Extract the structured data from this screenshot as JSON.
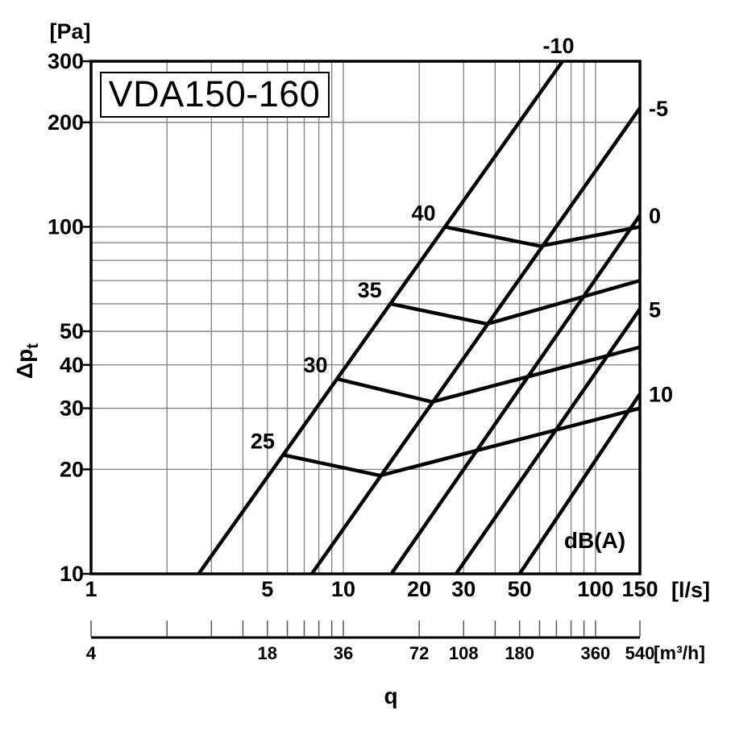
{
  "title": "VDA150-160",
  "chart_data": {
    "type": "line",
    "subtype": "log-log pressure drop vs airflow diagram with damper-position lines and iso-noise curves",
    "xlabel": "q",
    "ylabel": "Δp",
    "ylabel_sub": "t",
    "y_unit": "[Pa]",
    "x_unit": "[l/s]",
    "noise_unit_label": "dB(A)",
    "xlim": [
      1,
      150
    ],
    "ylim": [
      10,
      300
    ],
    "log_x": true,
    "log_y": true,
    "x_ticks": [
      1,
      5,
      10,
      20,
      30,
      50,
      100,
      150
    ],
    "y_ticks": [
      10,
      20,
      30,
      40,
      50,
      100,
      200,
      300
    ],
    "x_gridlines": [
      2,
      3,
      4,
      5,
      6,
      7,
      8,
      9,
      10,
      20,
      30,
      40,
      50,
      60,
      70,
      80,
      90,
      100
    ],
    "y_gridlines": [
      20,
      30,
      40,
      50,
      60,
      70,
      80,
      90,
      100,
      200
    ],
    "x2_axis": {
      "unit": "[m³/h]",
      "tick_positions_ls": [
        1,
        2,
        3,
        4,
        5,
        6,
        7,
        8,
        9,
        10,
        20,
        30,
        40,
        50,
        60,
        70,
        80,
        90,
        100,
        150
      ],
      "labels": [
        {
          "ls": 1,
          "text": "4"
        },
        {
          "ls": 5,
          "text": "18"
        },
        {
          "ls": 10,
          "text": "36"
        },
        {
          "ls": 20,
          "text": "72"
        },
        {
          "ls": 30,
          "text": "108"
        },
        {
          "ls": 50,
          "text": "180"
        },
        {
          "ls": 100,
          "text": "360"
        },
        {
          "ls": 150,
          "text": "540"
        }
      ]
    },
    "damper_lines": [
      {
        "label": "-10",
        "label_pos": "top",
        "points": [
          [
            2.67,
            10
          ],
          [
            74,
            300
          ]
        ]
      },
      {
        "label": "-5",
        "label_pos": "right",
        "points": [
          [
            7.5,
            10
          ],
          [
            150,
            220
          ]
        ]
      },
      {
        "label": "0",
        "label_pos": "right",
        "points": [
          [
            15.5,
            10
          ],
          [
            150,
            108
          ]
        ]
      },
      {
        "label": "5",
        "label_pos": "right",
        "points": [
          [
            28,
            10
          ],
          [
            150,
            58
          ]
        ]
      },
      {
        "label": "10",
        "label_pos": "right",
        "points": [
          [
            50,
            10
          ],
          [
            150,
            33
          ]
        ]
      }
    ],
    "noise_curves": [
      {
        "label": "25",
        "points": [
          [
            5.8,
            22
          ],
          [
            14,
            19.2
          ],
          [
            150,
            30
          ]
        ]
      },
      {
        "label": "30",
        "points": [
          [
            9.4,
            36.5
          ],
          [
            22.5,
            31.3
          ],
          [
            150,
            45
          ]
        ]
      },
      {
        "label": "35",
        "points": [
          [
            15.4,
            60
          ],
          [
            37.2,
            52.5
          ],
          [
            150,
            70
          ]
        ]
      },
      {
        "label": "40",
        "points": [
          [
            25.2,
            100
          ],
          [
            60.3,
            88
          ],
          [
            150,
            100
          ]
        ]
      }
    ],
    "colors": {
      "line": "#000000",
      "grid": "#7f7f7f",
      "background": "#ffffff"
    }
  }
}
